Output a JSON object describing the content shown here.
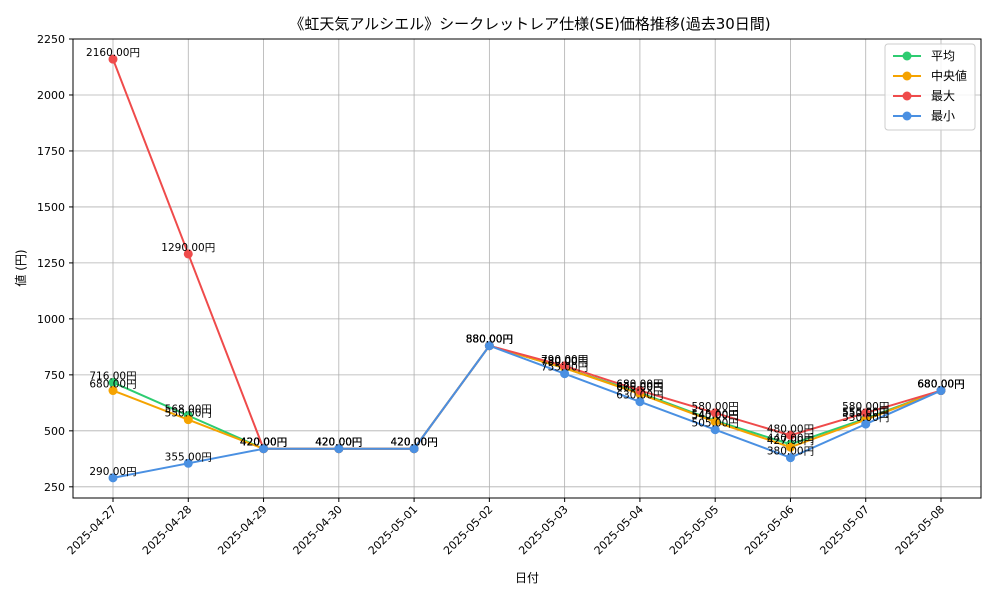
{
  "chart_data": {
    "type": "line",
    "title": "《虹天気アルシエル》シークレットレア仕様(SE)価格推移(過去30日間)",
    "xlabel": "日付",
    "ylabel": "値 (円)",
    "ylim": [
      200,
      2250
    ],
    "yticks": [
      250,
      500,
      750,
      1000,
      1250,
      1500,
      1750,
      2000,
      2250
    ],
    "grid": true,
    "legend_position": "top-right",
    "categories": [
      "2025-04-27",
      "2025-04-28",
      "2025-04-29",
      "2025-04-30",
      "2025-05-01",
      "2025-05-02",
      "2025-05-03",
      "2025-05-04",
      "2025-05-05",
      "2025-05-06",
      "2025-05-07",
      "2025-05-08"
    ],
    "series": [
      {
        "name": "平均",
        "color": "#2ecc71",
        "values": [
          716,
          568,
          420,
          420,
          420,
          880,
          780,
          670,
          545,
          440,
          555,
          680
        ],
        "labels": [
          "716.00円",
          "568.00円",
          "420.00円",
          "420.00円",
          "420.00円",
          "880.00円",
          "780.00円",
          "670.00円",
          "545.00円",
          "440.00円",
          "555.00円",
          "680.00円"
        ]
      },
      {
        "name": "中央値",
        "color": "#f5a300",
        "values": [
          680,
          550,
          420,
          420,
          420,
          880,
          780,
          665,
          540,
          427,
          550,
          680
        ],
        "labels": [
          "680.00円",
          "550.00円",
          "420.00円",
          "420.00円",
          "420.00円",
          "880.00円",
          "780.00円",
          "665.00円",
          "540.00円",
          "427.00円",
          "550.00円",
          "680.00円"
        ]
      },
      {
        "name": "最大",
        "color": "#ef4b4b",
        "values": [
          2160,
          1290,
          420,
          420,
          420,
          880,
          790,
          680,
          580,
          480,
          580,
          680
        ],
        "labels": [
          "2160.00円",
          "1290.00円",
          "420.00円",
          "420.00円",
          "420.00円",
          "880.00円",
          "790.00円",
          "680.00円",
          "580.00円",
          "480.00円",
          "580.00円",
          "680.00円"
        ]
      },
      {
        "name": "最小",
        "color": "#4a90e2",
        "values": [
          290,
          355,
          420,
          420,
          420,
          880,
          755,
          630,
          505,
          380,
          530,
          680
        ],
        "labels": [
          "290.00円",
          "355.00円",
          "420.00円",
          "420.00円",
          "420.00円",
          "880.00円",
          "755.00円",
          "630.00円",
          "505.00円",
          "380.00円",
          "530.00円",
          "680.00円"
        ]
      }
    ]
  }
}
